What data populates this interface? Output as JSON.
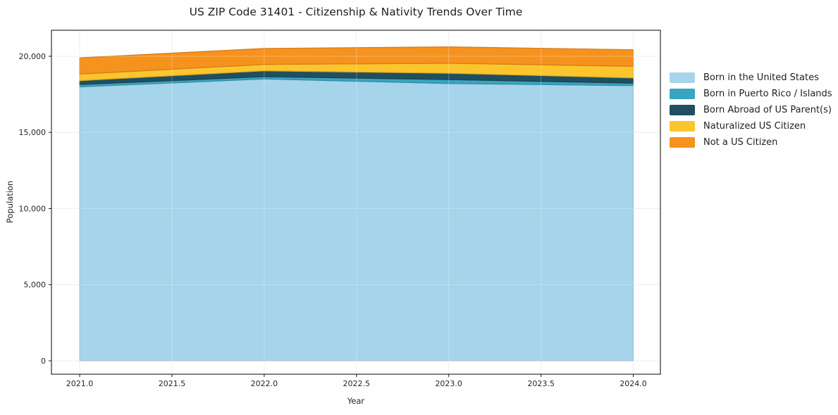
{
  "title": "US ZIP Code 31401 - Citizenship & Nativity Trends Over Time",
  "axes": {
    "xlabel": "Year",
    "ylabel": "Population",
    "x_tick_labels": [
      "2021.0",
      "2021.5",
      "2022.0",
      "2022.5",
      "2023.0",
      "2023.5",
      "2024.0"
    ],
    "y_tick_labels": [
      "0",
      "5,000",
      "10,000",
      "15,000",
      "20,000"
    ]
  },
  "colors": {
    "born_us": "#a6d4ea",
    "born_pr_islands": "#39a5c2",
    "born_abroad": "#1f4f60",
    "naturalized": "#fcc52d",
    "not_citizen": "#f6921e",
    "grid": "#e8e8e8",
    "spine": "#1a1a1a",
    "text": "#262626"
  },
  "chart_data": {
    "type": "area",
    "stacked": true,
    "title": "US ZIP Code 31401 - Citizenship & Nativity Trends Over Time",
    "xlabel": "Year",
    "ylabel": "Population",
    "x": [
      2021,
      2022,
      2023,
      2024
    ],
    "series": [
      {
        "name": "Born in the United States",
        "color": "#a6d4ea",
        "values": [
          17990,
          18510,
          18210,
          18075
        ]
      },
      {
        "name": "Born in Puerto Rico / Islands",
        "color": "#39a5c2",
        "values": [
          150,
          150,
          260,
          155
        ]
      },
      {
        "name": "Born Abroad of US Parent(s)",
        "color": "#1f4f60",
        "values": [
          260,
          385,
          415,
          350
        ]
      },
      {
        "name": "Naturalized US Citizen",
        "color": "#fcc52d",
        "values": [
          430,
          420,
          660,
          760
        ]
      },
      {
        "name": "Not a US Citizen",
        "color": "#f6921e",
        "values": [
          1070,
          1050,
          1075,
          1090
        ]
      }
    ],
    "totals_by_year": [
      19900,
      20515,
      20620,
      20430
    ],
    "x_tick_values": [
      2021.0,
      2021.5,
      2022.0,
      2022.5,
      2023.0,
      2023.5,
      2024.0
    ],
    "y_tick_values": [
      0,
      5000,
      10000,
      15000,
      20000
    ],
    "xlim": [
      2020.847,
      2024.147
    ],
    "ylim": [
      -880,
      21710
    ],
    "grid": true,
    "legend_position": "right"
  }
}
